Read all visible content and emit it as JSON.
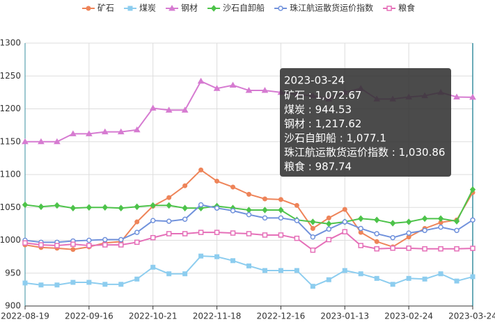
{
  "chart_data": {
    "type": "line",
    "categories": [
      "2022-08-19",
      null,
      null,
      null,
      "2022-09-16",
      null,
      null,
      null,
      "2022-10-21",
      null,
      null,
      null,
      "2022-11-18",
      null,
      null,
      null,
      "2022-12-16",
      null,
      null,
      null,
      "2023-01-13",
      null,
      null,
      null,
      "2023-02-24",
      null,
      null,
      null,
      "2023-03-24"
    ],
    "ylim": [
      900,
      1300
    ],
    "yticks": [
      900,
      950,
      1000,
      1050,
      1100,
      1150,
      1200,
      1250,
      1300
    ],
    "grid": true,
    "legend": "top",
    "series": [
      {
        "name": "矿石",
        "color": "#ee8459",
        "marker": "circle",
        "values": [
          993,
          989,
          988,
          986,
          990,
          996,
          998,
          1028,
          1052,
          1065,
          1083,
          1107,
          1090,
          1081,
          1070,
          1063,
          1062,
          1053,
          1018,
          1034,
          1047,
          1012,
          998,
          990,
          1005,
          1018,
          1027,
          1031,
          1072.67
        ]
      },
      {
        "name": "煤炭",
        "color": "#8dcdef",
        "marker": "square",
        "values": [
          935,
          932,
          932,
          936,
          936,
          933,
          933,
          941,
          959,
          949,
          949,
          976,
          975,
          969,
          961,
          954,
          954,
          954,
          930,
          940,
          954,
          949,
          942,
          933,
          942,
          941,
          949,
          938,
          944.53
        ]
      },
      {
        "name": "钢材",
        "color": "#d67bd1",
        "marker": "triangle",
        "values": [
          1150,
          1150,
          1150,
          1162,
          1162,
          1165,
          1165,
          1168,
          1201,
          1198,
          1198,
          1242,
          1231,
          1236,
          1228,
          1228,
          1225,
          1222,
          1220,
          1215,
          1225,
          1231,
          1215,
          1215,
          1218,
          1220,
          1225,
          1218,
          1217.62
        ]
      },
      {
        "name": "沙石自卸船",
        "color": "#4dc34a",
        "marker": "diamond",
        "values": [
          1054,
          1051,
          1053,
          1049,
          1050,
          1050,
          1049,
          1051,
          1053,
          1053,
          1049,
          1049,
          1052,
          1049,
          1046,
          1046,
          1046,
          1031,
          1028,
          1025,
          1028,
          1033,
          1031,
          1026,
          1028,
          1033,
          1033,
          1029,
          1077.1
        ]
      },
      {
        "name": "珠江航运散货运价指数",
        "color": "#7192dc",
        "marker": "circle-open",
        "values": [
          1000,
          997,
          997,
          999,
          1000,
          1001,
          1001,
          1012,
          1030,
          1029,
          1032,
          1054,
          1049,
          1045,
          1039,
          1034,
          1034,
          1030,
          1005,
          1017,
          1028,
          1018,
          1010,
          1004,
          1011,
          1015,
          1020,
          1015,
          1030.86
        ]
      },
      {
        "name": "粮食",
        "color": "#e56fb8",
        "marker": "square-open",
        "values": [
          996,
          993,
          992,
          994,
          992,
          993,
          993,
          997,
          1004,
          1010,
          1010,
          1012,
          1012,
          1011,
          1010,
          1008,
          1008,
          1003,
          985,
          1001,
          1013,
          992,
          987,
          988,
          988,
          987,
          987,
          987,
          987.74
        ]
      }
    ],
    "tooltip": {
      "title": "2023-03-24",
      "values": [
        "1,072.67",
        "944.53",
        "1,217.62",
        "1,077.1",
        "1,030.86",
        "987.74"
      ]
    }
  }
}
